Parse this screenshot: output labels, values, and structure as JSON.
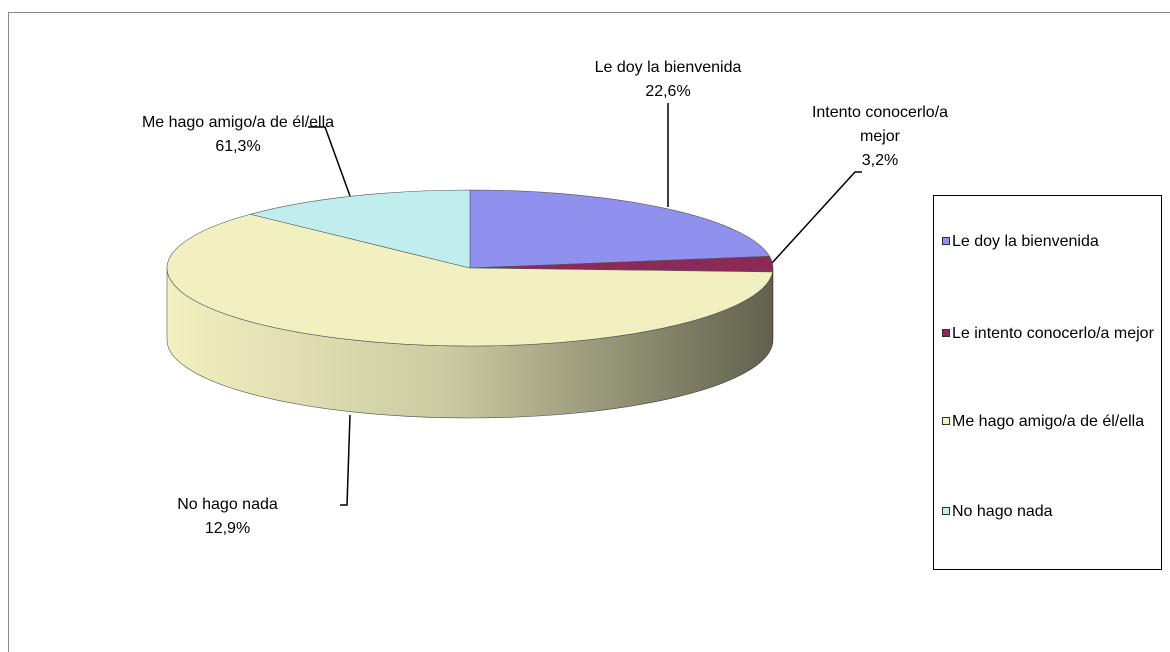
{
  "chart_data": {
    "type": "pie3d",
    "categories": [
      "Le doy la bienvenida",
      "Le intento conocerlo/a mejor",
      "Me hago amigo/a de él/ella",
      "No hago nada"
    ],
    "data_label_names": [
      "Le doy la bienvenida",
      "Intento conocerlo/a mejor",
      "Me hago amigo/a de él/ella",
      "No hago nada"
    ],
    "values": [
      22.6,
      3.2,
      61.3,
      12.9
    ],
    "value_labels": [
      "22,6%",
      "3,2%",
      "61,3%",
      "12,9%"
    ],
    "colors": [
      "#9090ee",
      "#8b2a58",
      "#f0f0c0",
      "#c0eeee"
    ],
    "legend": "right"
  }
}
